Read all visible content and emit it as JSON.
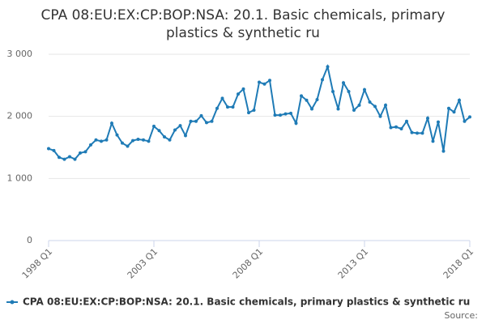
{
  "chart_data": {
    "type": "line",
    "title": "CPA 08:EU:EX:CP:BOP:NSA: 20.1. Basic chemicals, primary plastics & synthetic ru",
    "categories": [
      "1998 Q1",
      null,
      null,
      null,
      null,
      null,
      null,
      null,
      null,
      null,
      null,
      null,
      null,
      null,
      null,
      null,
      null,
      null,
      null,
      null,
      "2003 Q1",
      null,
      null,
      null,
      null,
      null,
      null,
      null,
      null,
      null,
      null,
      null,
      null,
      null,
      null,
      null,
      null,
      null,
      null,
      null,
      "2008 Q1",
      null,
      null,
      null,
      null,
      null,
      null,
      null,
      null,
      null,
      null,
      null,
      null,
      null,
      null,
      null,
      null,
      null,
      null,
      null,
      "2013 Q1",
      null,
      null,
      null,
      null,
      null,
      null,
      null,
      null,
      null,
      null,
      null,
      null,
      null,
      null,
      null,
      null,
      null,
      null,
      null,
      "2018 Q1"
    ],
    "series": [
      {
        "name": "CPA 08:EU:EX:CP:BOP:NSA: 20.1. Basic chemicals, primary plastics & synthetic ru",
        "color": "#1f7bb6",
        "values": [
          1480,
          1450,
          1340,
          1310,
          1350,
          1310,
          1410,
          1430,
          1540,
          1620,
          1600,
          1620,
          1890,
          1700,
          1570,
          1520,
          1610,
          1630,
          1620,
          1600,
          1840,
          1770,
          1670,
          1620,
          1780,
          1850,
          1690,
          1920,
          1920,
          2010,
          1900,
          1920,
          2130,
          2290,
          2150,
          2150,
          2360,
          2440,
          2060,
          2100,
          2550,
          2520,
          2580,
          2020,
          2020,
          2040,
          2050,
          1890,
          2330,
          2260,
          2120,
          2270,
          2590,
          2800,
          2400,
          2120,
          2540,
          2400,
          2100,
          2180,
          2430,
          2230,
          2160,
          2000,
          2180,
          1820,
          1830,
          1800,
          1920,
          1740,
          1730,
          1730,
          1970,
          1600,
          1910,
          1440,
          2130,
          2070,
          2260,
          1920,
          1990
        ]
      }
    ],
    "ylim": [
      0,
      3000
    ],
    "yticks": [
      0,
      {
        "value": 1000,
        "label": "1 000"
      },
      {
        "value": 2000,
        "label": "2 000"
      },
      {
        "value": 3000,
        "label": "3 000"
      }
    ],
    "grid": true,
    "source": "Source:"
  }
}
